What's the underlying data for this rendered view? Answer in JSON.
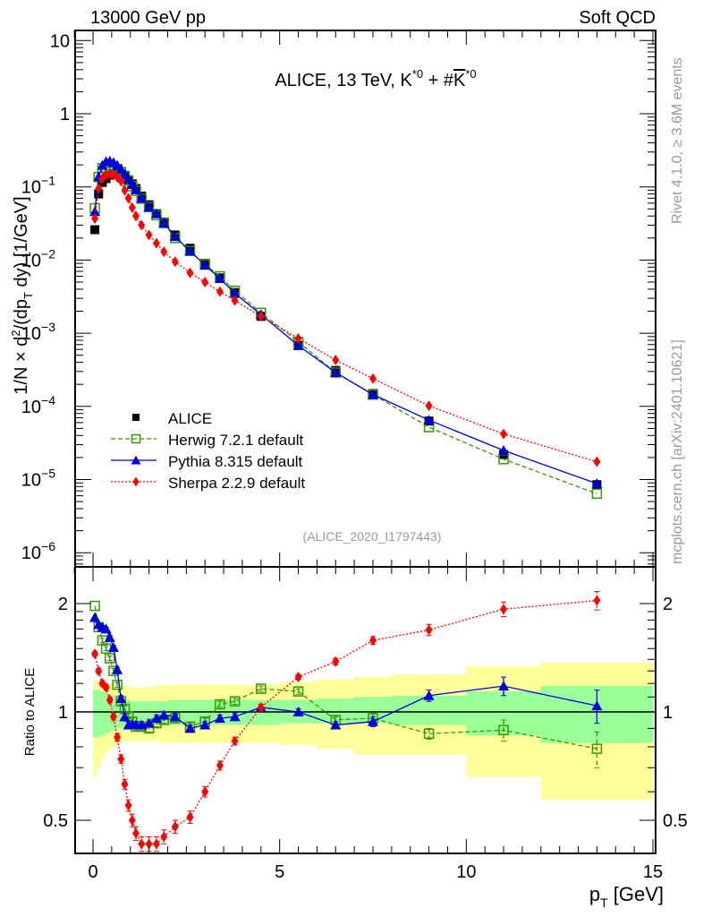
{
  "header": {
    "left": "13000 GeV pp",
    "right": "Soft QCD"
  },
  "side_labels": {
    "rivet": "Rivet 4.1.0, ≥ 3.6M events",
    "mcplots": "mcplots.cern.ch [arXiv:2401.10621]"
  },
  "chart_data": [
    {
      "type": "scatter",
      "title": "ALICE, 13 TeV, K*0 + #K̅*0",
      "title_parts": {
        "main": "ALICE, 13 TeV, K",
        "sup1": "*0",
        "mid": " + #",
        "kbar": "K",
        "sup2": "*0"
      },
      "xlabel": "p_T [GeV]",
      "ylabel": "1/N × d²/(dp_T dy) [1/GeV]",
      "ylabel_parts": {
        "a": "1/N × d",
        "sup": "2",
        "b": "/(dp",
        "sub": "T",
        "c": " dy) [1/GeV]"
      },
      "yscale": "log",
      "xlim": [
        -0.3,
        15.1
      ],
      "ylim": [
        5e-07,
        13
      ],
      "yticks": [
        {
          "v": 10,
          "label": "10"
        },
        {
          "v": 1,
          "label": "1"
        },
        {
          "v": 0.1,
          "label": "10",
          "exp": "−1"
        },
        {
          "v": 0.01,
          "label": "10",
          "exp": "−2"
        },
        {
          "v": 0.001,
          "label": "10",
          "exp": "−3"
        },
        {
          "v": 0.0001,
          "label": "10",
          "exp": "−4"
        },
        {
          "v": 1e-05,
          "label": "10",
          "exp": "−5"
        },
        {
          "v": 1e-06,
          "label": "10",
          "exp": "−6"
        }
      ],
      "annotation": "(ALICE_2020_I1797443)",
      "legend": {
        "position": "bottom-left",
        "entries": [
          "ALICE",
          "Herwig 7.2.1 default",
          "Pythia 8.315 default",
          "Sherpa 2.2.9 default"
        ]
      },
      "x": [
        0.05,
        0.15,
        0.25,
        0.35,
        0.45,
        0.55,
        0.65,
        0.75,
        0.85,
        0.95,
        1.05,
        1.15,
        1.3,
        1.5,
        1.7,
        1.9,
        2.2,
        2.6,
        3.0,
        3.4,
        3.8,
        4.5,
        5.5,
        6.5,
        7.5,
        9.0,
        11.0,
        13.5
      ],
      "series": [
        {
          "name": "ALICE",
          "color": "#000000",
          "marker": "square-filled",
          "values": [
            0.026,
            0.08,
            0.115,
            0.13,
            0.145,
            0.15,
            0.15,
            0.148,
            0.138,
            0.125,
            0.11,
            0.095,
            0.075,
            0.057,
            0.043,
            0.033,
            0.022,
            0.0145,
            0.009,
            0.0057,
            0.0036,
            0.0017,
            0.00068,
            0.00031,
            0.00015,
            6.3e-05,
            2.2e-05,
            8.5e-06
          ]
        },
        {
          "name": "Herwig 7.2.1 default",
          "color": "#339900",
          "marker": "square-open",
          "line": "dashed",
          "values": [
            0.051,
            0.136,
            0.18,
            0.185,
            0.19,
            0.185,
            0.175,
            0.16,
            0.142,
            0.122,
            0.102,
            0.088,
            0.069,
            0.053,
            0.041,
            0.032,
            0.02,
            0.0133,
            0.0087,
            0.006,
            0.0038,
            0.0019,
            0.00076,
            0.00029,
            0.000145,
            5.2e-05,
            1.9e-05,
            6.4e-06
          ]
        },
        {
          "name": "Pythia 8.315 default",
          "color": "#0000dd",
          "marker": "triangle",
          "line": "solid",
          "values": [
            0.046,
            0.138,
            0.197,
            0.222,
            0.225,
            0.215,
            0.198,
            0.175,
            0.15,
            0.128,
            0.108,
            0.091,
            0.07,
            0.053,
            0.043,
            0.032,
            0.021,
            0.0133,
            0.0085,
            0.0056,
            0.0035,
            0.0018,
            0.00068,
            0.00029,
            0.000145,
            6.5e-05,
            2.5e-05,
            8.8e-06
          ]
        },
        {
          "name": "Sherpa 2.2.9 default",
          "color": "#ff0000",
          "marker": "diamond",
          "line": "dotted",
          "values": [
            0.037,
            0.095,
            0.13,
            0.145,
            0.15,
            0.145,
            0.135,
            0.12,
            0.09,
            0.07,
            0.052,
            0.04,
            0.03,
            0.022,
            0.017,
            0.013,
            0.0095,
            0.0067,
            0.005,
            0.0037,
            0.0028,
            0.0017,
            0.00085,
            0.00043,
            0.00024,
            0.000102,
            4.2e-05,
            1.75e-05
          ]
        }
      ]
    },
    {
      "type": "scatter",
      "ylabel": "Ratio to ALICE",
      "xlabel": "p_T [GeV]",
      "yscale": "log",
      "xlim": [
        -0.3,
        15.1
      ],
      "ylim": [
        0.4,
        2.35
      ],
      "yticks": [
        {
          "v": 2,
          "label": "2"
        },
        {
          "v": 1,
          "label": "1"
        },
        {
          "v": 0.5,
          "label": "0.5"
        }
      ],
      "xticks": [
        {
          "v": 0,
          "label": "0"
        },
        {
          "v": 5,
          "label": "5"
        },
        {
          "v": 10,
          "label": "10"
        },
        {
          "v": 15,
          "label": "15"
        }
      ],
      "bands": {
        "edges": [
          0.0,
          0.1,
          0.2,
          0.3,
          0.4,
          0.5,
          0.6,
          0.7,
          0.8,
          0.9,
          1.0,
          1.1,
          1.2,
          1.4,
          1.6,
          1.8,
          2.0,
          2.4,
          2.8,
          3.2,
          3.6,
          4.0,
          5.0,
          6.0,
          7.0,
          8.0,
          10.0,
          12.0,
          15.0
        ],
        "stat_lo": [
          0.85,
          0.85,
          0.86,
          0.87,
          0.88,
          0.89,
          0.9,
          0.9,
          0.91,
          0.91,
          0.91,
          0.91,
          0.92,
          0.92,
          0.92,
          0.92,
          0.92,
          0.92,
          0.92,
          0.92,
          0.92,
          0.92,
          0.93,
          0.93,
          0.93,
          0.92,
          0.86,
          0.82
        ],
        "stat_hi": [
          1.15,
          1.15,
          1.14,
          1.13,
          1.12,
          1.11,
          1.1,
          1.09,
          1.08,
          1.08,
          1.07,
          1.07,
          1.07,
          1.07,
          1.07,
          1.07,
          1.08,
          1.08,
          1.08,
          1.08,
          1.08,
          1.08,
          1.08,
          1.09,
          1.1,
          1.11,
          1.14,
          1.18
        ],
        "syst_lo": [
          0.66,
          0.7,
          0.74,
          0.77,
          0.79,
          0.8,
          0.81,
          0.82,
          0.83,
          0.83,
          0.83,
          0.83,
          0.83,
          0.83,
          0.83,
          0.82,
          0.82,
          0.82,
          0.82,
          0.82,
          0.82,
          0.82,
          0.81,
          0.79,
          0.76,
          0.76,
          0.66,
          0.57
        ],
        "syst_hi": [
          1.22,
          1.22,
          1.21,
          1.2,
          1.2,
          1.19,
          1.19,
          1.19,
          1.18,
          1.18,
          1.17,
          1.17,
          1.17,
          1.17,
          1.18,
          1.19,
          1.19,
          1.19,
          1.19,
          1.19,
          1.19,
          1.19,
          1.21,
          1.23,
          1.25,
          1.27,
          1.34,
          1.37
        ],
        "stat_color": "#99ff99",
        "syst_color": "#ffff99"
      },
      "x": [
        0.05,
        0.15,
        0.25,
        0.35,
        0.45,
        0.55,
        0.65,
        0.75,
        0.85,
        0.95,
        1.05,
        1.15,
        1.3,
        1.5,
        1.7,
        1.9,
        2.2,
        2.6,
        3.0,
        3.4,
        3.8,
        4.5,
        5.5,
        6.5,
        7.5,
        9.0,
        11.0,
        13.5
      ],
      "series": [
        {
          "name": "Herwig 7.2.1 default",
          "color": "#339900",
          "marker": "square-open",
          "line": "dashed",
          "values": [
            1.97,
            1.72,
            1.58,
            1.5,
            1.41,
            1.3,
            1.19,
            1.07,
            1.02,
            0.97,
            0.94,
            0.91,
            0.91,
            0.9,
            0.93,
            0.95,
            0.96,
            0.91,
            0.94,
            1.05,
            1.07,
            1.16,
            1.14,
            0.95,
            0.96,
            0.87,
            0.89,
            0.79
          ],
          "errors": [
            0.02,
            0.02,
            0.02,
            0.02,
            0.02,
            0.02,
            0.02,
            0.02,
            0.02,
            0.02,
            0.02,
            0.02,
            0.02,
            0.02,
            0.02,
            0.02,
            0.02,
            0.02,
            0.02,
            0.02,
            0.02,
            0.02,
            0.02,
            0.02,
            0.03,
            0.03,
            0.06,
            0.09
          ]
        },
        {
          "name": "Pythia 8.315 default",
          "color": "#0000dd",
          "marker": "triangle",
          "line": "solid",
          "values": [
            1.83,
            1.75,
            1.72,
            1.7,
            1.61,
            1.51,
            1.31,
            1.09,
            0.97,
            0.92,
            0.92,
            0.92,
            0.92,
            0.93,
            0.96,
            0.98,
            0.97,
            0.9,
            0.92,
            0.96,
            0.97,
            1.03,
            1.0,
            0.92,
            0.94,
            1.11,
            1.18,
            1.04
          ],
          "errors": [
            0.02,
            0.02,
            0.02,
            0.02,
            0.02,
            0.02,
            0.02,
            0.02,
            0.02,
            0.02,
            0.02,
            0.02,
            0.02,
            0.02,
            0.02,
            0.02,
            0.02,
            0.02,
            0.02,
            0.02,
            0.02,
            0.02,
            0.02,
            0.02,
            0.03,
            0.04,
            0.07,
            0.11
          ]
        },
        {
          "name": "Sherpa 2.2.9 default",
          "color": "#ff0000",
          "marker": "diamond",
          "line": "dotted",
          "values": [
            1.45,
            1.3,
            1.2,
            1.17,
            1.08,
            0.97,
            0.85,
            0.74,
            0.63,
            0.55,
            0.5,
            0.46,
            0.43,
            0.43,
            0.43,
            0.45,
            0.48,
            0.51,
            0.6,
            0.71,
            0.83,
            1.03,
            1.25,
            1.38,
            1.58,
            1.69,
            1.93,
            2.04
          ],
          "errors": [
            0.02,
            0.02,
            0.02,
            0.02,
            0.02,
            0.02,
            0.02,
            0.02,
            0.02,
            0.02,
            0.02,
            0.02,
            0.02,
            0.02,
            0.02,
            0.02,
            0.02,
            0.02,
            0.02,
            0.02,
            0.02,
            0.02,
            0.02,
            0.03,
            0.04,
            0.06,
            0.09,
            0.12
          ]
        }
      ]
    }
  ]
}
